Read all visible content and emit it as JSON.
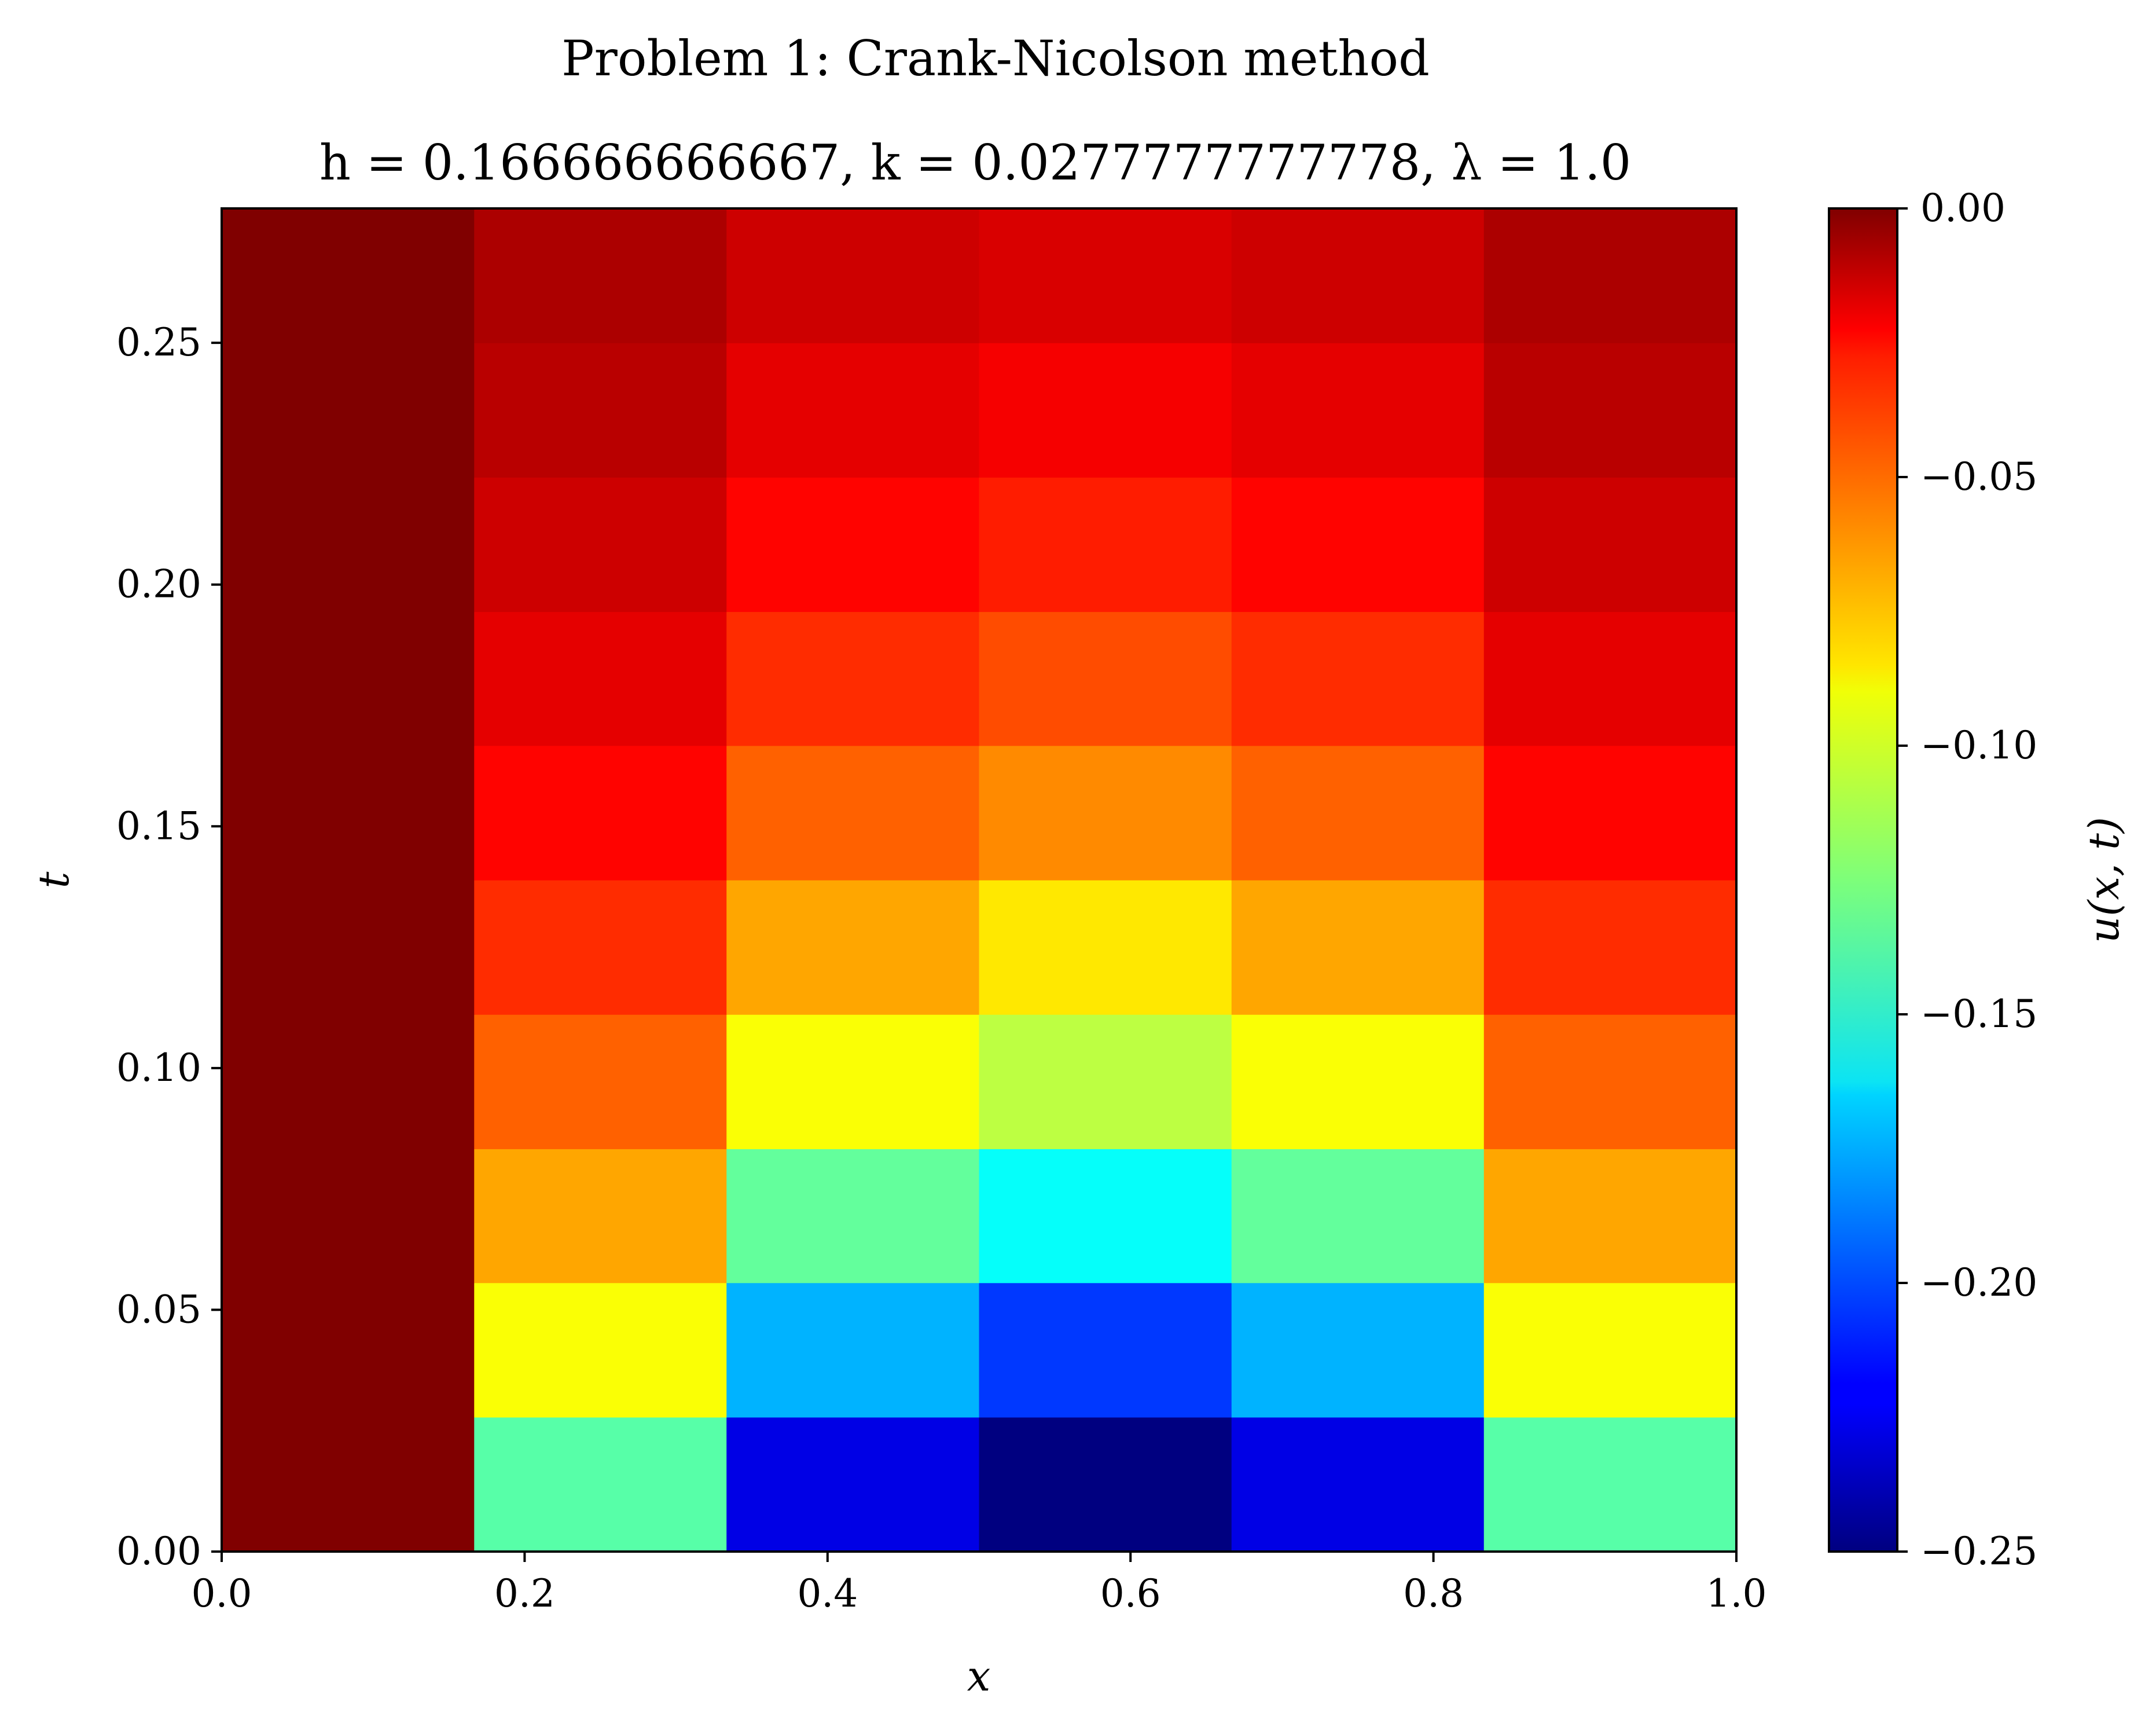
{
  "chart_data": {
    "type": "heatmap",
    "suptitle": "Problem 1: Crank-Nicolson method",
    "title": "h = 0.166666666667, k = 0.0277777777778, λ = 1.0",
    "xlabel": "x",
    "ylabel": "t",
    "colorbar_label": "u(x, t)",
    "colormap": "jet",
    "xlim": [
      0.0,
      1.0
    ],
    "ylim": [
      0.0,
      0.2778
    ],
    "clim": [
      -0.25,
      0.0
    ],
    "xticks": [
      "0.0",
      "0.2",
      "0.4",
      "0.6",
      "0.8",
      "1.0"
    ],
    "yticks": [
      "0.00",
      "0.05",
      "0.10",
      "0.15",
      "0.20",
      "0.25"
    ],
    "colorbar_ticks": [
      "0.00",
      "−0.05",
      "−0.10",
      "−0.15",
      "−0.20",
      "−0.25"
    ],
    "x_edges": [
      0.0,
      0.1667,
      0.3333,
      0.5,
      0.6667,
      0.8333,
      1.0
    ],
    "t_edges": [
      0.0,
      0.0278,
      0.0556,
      0.0833,
      0.1111,
      0.1389,
      0.1667,
      0.1944,
      0.2222,
      0.25,
      0.2778
    ],
    "u": [
      [
        0.0,
        -0.135,
        -0.225,
        -0.25,
        -0.225,
        -0.135
      ],
      [
        0.0,
        -0.095,
        -0.175,
        -0.205,
        -0.175,
        -0.095
      ],
      [
        0.0,
        -0.072,
        -0.132,
        -0.155,
        -0.132,
        -0.072
      ],
      [
        0.0,
        -0.055,
        -0.095,
        -0.11,
        -0.095,
        -0.055
      ],
      [
        0.0,
        -0.042,
        -0.072,
        -0.088,
        -0.072,
        -0.042
      ],
      [
        0.0,
        -0.032,
        -0.055,
        -0.065,
        -0.055,
        -0.032
      ],
      [
        0.0,
        -0.025,
        -0.042,
        -0.05,
        -0.042,
        -0.025
      ],
      [
        0.0,
        -0.019,
        -0.032,
        -0.038,
        -0.032,
        -0.019
      ],
      [
        0.0,
        -0.014,
        -0.025,
        -0.029,
        -0.025,
        -0.014
      ],
      [
        0.0,
        -0.011,
        -0.019,
        -0.022,
        -0.019,
        -0.011
      ]
    ]
  }
}
